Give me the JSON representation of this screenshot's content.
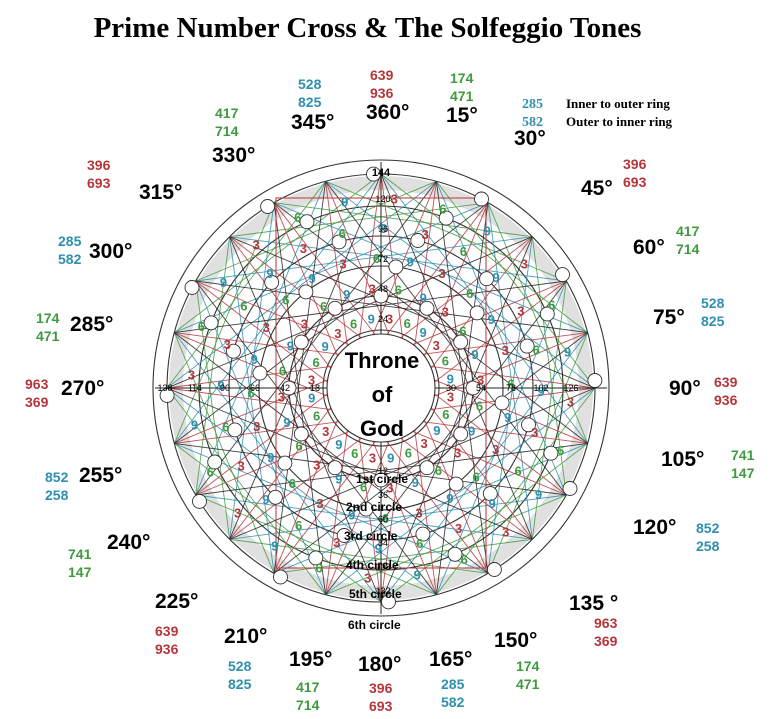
{
  "title": "Prime Number Cross & The Solfeggio Tones",
  "legend": {
    "inner": {
      "number": "285",
      "text": "Inner to outer ring"
    },
    "outer": {
      "number": "582",
      "text": "Outer to inner ring"
    }
  },
  "center": {
    "line1": "Throne",
    "line2": "of",
    "line3": "God"
  },
  "rings": [
    "1st circle",
    "2nd circle",
    "3rd circle",
    "4th circle",
    "5th circle",
    "6th circle"
  ],
  "angles": {
    "a0": "360°",
    "a15": "15°",
    "a30": "30°",
    "a45": "45°",
    "a60": "60°",
    "a75": "75°",
    "a90": "90°",
    "a105": "105°",
    "a120": "120°",
    "a135": "135 °",
    "a150": "150°",
    "a165": "165°",
    "a180": "180°",
    "a195": "195°",
    "a210": "210°",
    "a225": "225°",
    "a240": "240°",
    "a255": "255°",
    "a270": "270°",
    "a285": "285°",
    "a300": "300°",
    "a315": "315°",
    "a330": "330°",
    "a345": "345°"
  },
  "tones": {
    "t0": [
      "639",
      "936"
    ],
    "t15": [
      "174",
      "471"
    ],
    "t45": [
      "396",
      "693"
    ],
    "t60": [
      "417",
      "714"
    ],
    "t75": [
      "528",
      "825"
    ],
    "t90": [
      "639",
      "936"
    ],
    "t105": [
      "741",
      "147"
    ],
    "t120": [
      "852",
      "258"
    ],
    "t135": [
      "963",
      "369"
    ],
    "t150": [
      "174",
      "471"
    ],
    "t165": [
      "285",
      "582"
    ],
    "t180": [
      "396",
      "693"
    ],
    "t195": [
      "417",
      "714"
    ],
    "t210": [
      "528",
      "825"
    ],
    "t225": [
      "639",
      "936"
    ],
    "t240": [
      "741",
      "147"
    ],
    "t255": [
      "852",
      "258"
    ],
    "t270": [
      "963",
      "369"
    ],
    "t285": [
      "174",
      "471"
    ],
    "t300": [
      "285",
      "582"
    ],
    "t315": [
      "396",
      "693"
    ],
    "t330": [
      "417",
      "714"
    ],
    "t345": [
      "528",
      "825"
    ]
  },
  "diagram": {
    "top_value": "144",
    "axis_top": [
      "120",
      "96",
      "72",
      "48",
      "24"
    ],
    "axis_bottom": [
      "12",
      "36",
      "60",
      "84",
      "108",
      "132"
    ],
    "axis_right": [
      "30",
      "54",
      "78",
      "102",
      "126"
    ],
    "axis_left": [
      "18",
      "42",
      "66",
      "90",
      "114",
      "138"
    ],
    "primes_ring": [
      "1",
      "5",
      "7",
      "11",
      "13",
      "17",
      "19",
      "23"
    ],
    "circled_outer": [
      "137",
      "139",
      "131",
      "133",
      "127",
      "125",
      "121",
      "129"
    ],
    "digits": [
      "3",
      "6",
      "9"
    ],
    "colors": {
      "red": "#b5363a",
      "green": "#3f9a3f",
      "blue": "#2f8fb0",
      "grey": "#d8d8d8"
    }
  }
}
